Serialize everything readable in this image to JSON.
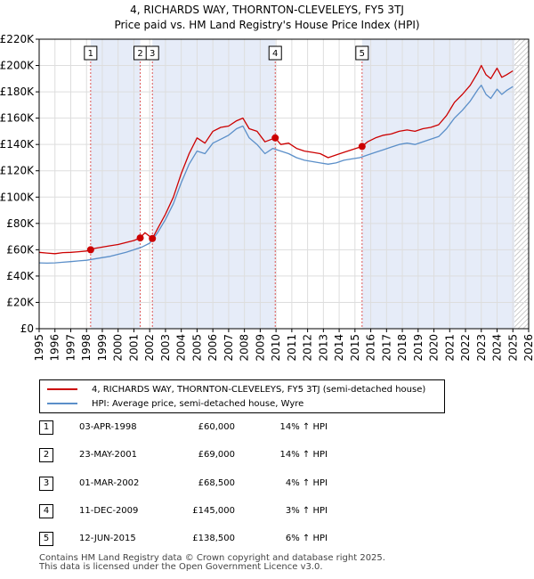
{
  "title_line1": "4, RICHARDS WAY, THORNTON-CLEVELEYS, FY5 3TJ",
  "title_line2": "Price paid vs. HM Land Registry's House Price Index (HPI)",
  "chart_data": {
    "type": "line",
    "y_ticks": [
      "£0",
      "£20K",
      "£40K",
      "£60K",
      "£80K",
      "£100K",
      "£120K",
      "£140K",
      "£160K",
      "£180K",
      "£200K",
      "£220K"
    ],
    "x_ticks": [
      "1995",
      "1996",
      "1997",
      "1998",
      "1999",
      "2000",
      "2001",
      "2002",
      "2003",
      "2004",
      "2005",
      "2006",
      "2007",
      "2008",
      "2009",
      "2010",
      "2011",
      "2012",
      "2013",
      "2014",
      "2015",
      "2016",
      "2017",
      "2018",
      "2019",
      "2020",
      "2021",
      "2022",
      "2023",
      "2024",
      "2025",
      "2026"
    ],
    "xlim": [
      1995,
      2026
    ],
    "ylim": [
      0,
      220000
    ],
    "grid": true,
    "forecast_from": 2025.1,
    "colors": {
      "property": "#cc0000",
      "hpi": "#5b8fc9",
      "shade": "#e6ecf8",
      "marker_line": "#dd5555",
      "forecast_hatch": "#bbbbbb"
    },
    "series": [
      {
        "name": "4, RICHARDS WAY, THORNTON-CLEVELEYS, FY5 3TJ (semi-detached house)",
        "x": [
          1995.0,
          1995.5,
          1996.0,
          1996.5,
          1997.0,
          1997.5,
          1998.0,
          1998.26,
          1998.5,
          1999.0,
          1999.5,
          2000.0,
          2000.5,
          2001.0,
          2001.4,
          2001.7,
          2002.17,
          2002.5,
          2003.0,
          2003.5,
          2004.0,
          2004.5,
          2005.0,
          2005.5,
          2006.0,
          2006.5,
          2007.0,
          2007.5,
          2007.9,
          2008.3,
          2008.8,
          2009.3,
          2009.95,
          2010.3,
          2010.8,
          2011.3,
          2011.8,
          2012.3,
          2012.8,
          2013.3,
          2013.8,
          2014.3,
          2014.8,
          2015.45,
          2015.8,
          2016.3,
          2016.8,
          2017.3,
          2017.8,
          2018.3,
          2018.8,
          2019.3,
          2019.8,
          2020.3,
          2020.8,
          2021.3,
          2021.8,
          2022.3,
          2022.8,
          2023.0,
          2023.3,
          2023.6,
          2024.0,
          2024.3,
          2024.6,
          2025.0
        ],
        "y": [
          58000,
          57500,
          57000,
          57800,
          58000,
          58500,
          59000,
          60000,
          61000,
          62000,
          63000,
          64000,
          65500,
          67000,
          69000,
          73000,
          68500,
          76000,
          87000,
          100000,
          118000,
          133000,
          145000,
          141000,
          150000,
          153000,
          154000,
          158000,
          160000,
          152000,
          150000,
          142000,
          145000,
          140000,
          141000,
          137000,
          135000,
          134000,
          133000,
          130000,
          132000,
          134000,
          136000,
          138500,
          142000,
          145000,
          147000,
          148000,
          150000,
          151000,
          150000,
          152000,
          153000,
          155000,
          162000,
          172000,
          178000,
          185000,
          195000,
          200000,
          193000,
          190000,
          198000,
          191000,
          193000,
          196000
        ]
      },
      {
        "name": "HPI: Average price, semi-detached house, Wyre",
        "x": [
          1995.0,
          1995.5,
          1996.0,
          1996.5,
          1997.0,
          1997.5,
          1998.0,
          1998.5,
          1999.0,
          1999.5,
          2000.0,
          2000.5,
          2001.0,
          2001.5,
          2002.0,
          2002.5,
          2003.0,
          2003.5,
          2004.0,
          2004.5,
          2005.0,
          2005.5,
          2006.0,
          2006.5,
          2007.0,
          2007.5,
          2007.9,
          2008.3,
          2008.8,
          2009.3,
          2009.8,
          2010.3,
          2010.8,
          2011.3,
          2011.8,
          2012.3,
          2012.8,
          2013.3,
          2013.8,
          2014.3,
          2014.8,
          2015.3,
          2015.8,
          2016.3,
          2016.8,
          2017.3,
          2017.8,
          2018.3,
          2018.8,
          2019.3,
          2019.8,
          2020.3,
          2020.8,
          2021.3,
          2021.8,
          2022.3,
          2022.8,
          2023.0,
          2023.3,
          2023.6,
          2024.0,
          2024.3,
          2024.6,
          2025.0
        ],
        "y": [
          50000,
          49800,
          50000,
          50500,
          51000,
          51500,
          52000,
          53000,
          54000,
          55000,
          56500,
          58000,
          60000,
          62000,
          65000,
          73000,
          83000,
          95000,
          111000,
          125000,
          135000,
          133000,
          141000,
          144000,
          147000,
          152000,
          154000,
          145000,
          140000,
          133000,
          137000,
          135000,
          133000,
          130000,
          128000,
          127000,
          126000,
          125000,
          126000,
          128000,
          129000,
          130000,
          132000,
          134000,
          136000,
          138000,
          140000,
          141000,
          140000,
          142000,
          144000,
          146000,
          152000,
          160000,
          166000,
          173000,
          182000,
          185000,
          178000,
          175000,
          182000,
          178000,
          181000,
          184000
        ]
      }
    ],
    "sales": [
      {
        "id": "1",
        "x": 1998.26,
        "y": 60000
      },
      {
        "id": "2",
        "x": 2001.4,
        "y": 69000
      },
      {
        "id": "3",
        "x": 2002.17,
        "y": 68500
      },
      {
        "id": "4",
        "x": 2009.95,
        "y": 145000
      },
      {
        "id": "5",
        "x": 2015.45,
        "y": 138500
      }
    ]
  },
  "legend": {
    "property_label": "4, RICHARDS WAY, THORNTON-CLEVELEYS, FY5 3TJ (semi-detached house)",
    "hpi_label": "HPI: Average price, semi-detached house, Wyre"
  },
  "sales_table": [
    {
      "num": "1",
      "date": "03-APR-1998",
      "price": "£60,000",
      "hpi": "14% ↑ HPI"
    },
    {
      "num": "2",
      "date": "23-MAY-2001",
      "price": "£69,000",
      "hpi": "14% ↑ HPI"
    },
    {
      "num": "3",
      "date": "01-MAR-2002",
      "price": "£68,500",
      "hpi": "4% ↑ HPI"
    },
    {
      "num": "4",
      "date": "11-DEC-2009",
      "price": "£145,000",
      "hpi": "3% ↑ HPI"
    },
    {
      "num": "5",
      "date": "12-JUN-2015",
      "price": "£138,500",
      "hpi": "6% ↑ HPI"
    }
  ],
  "footer_line1": "Contains HM Land Registry data © Crown copyright and database right 2025.",
  "footer_line2": "This data is licensed under the Open Government Licence v3.0."
}
